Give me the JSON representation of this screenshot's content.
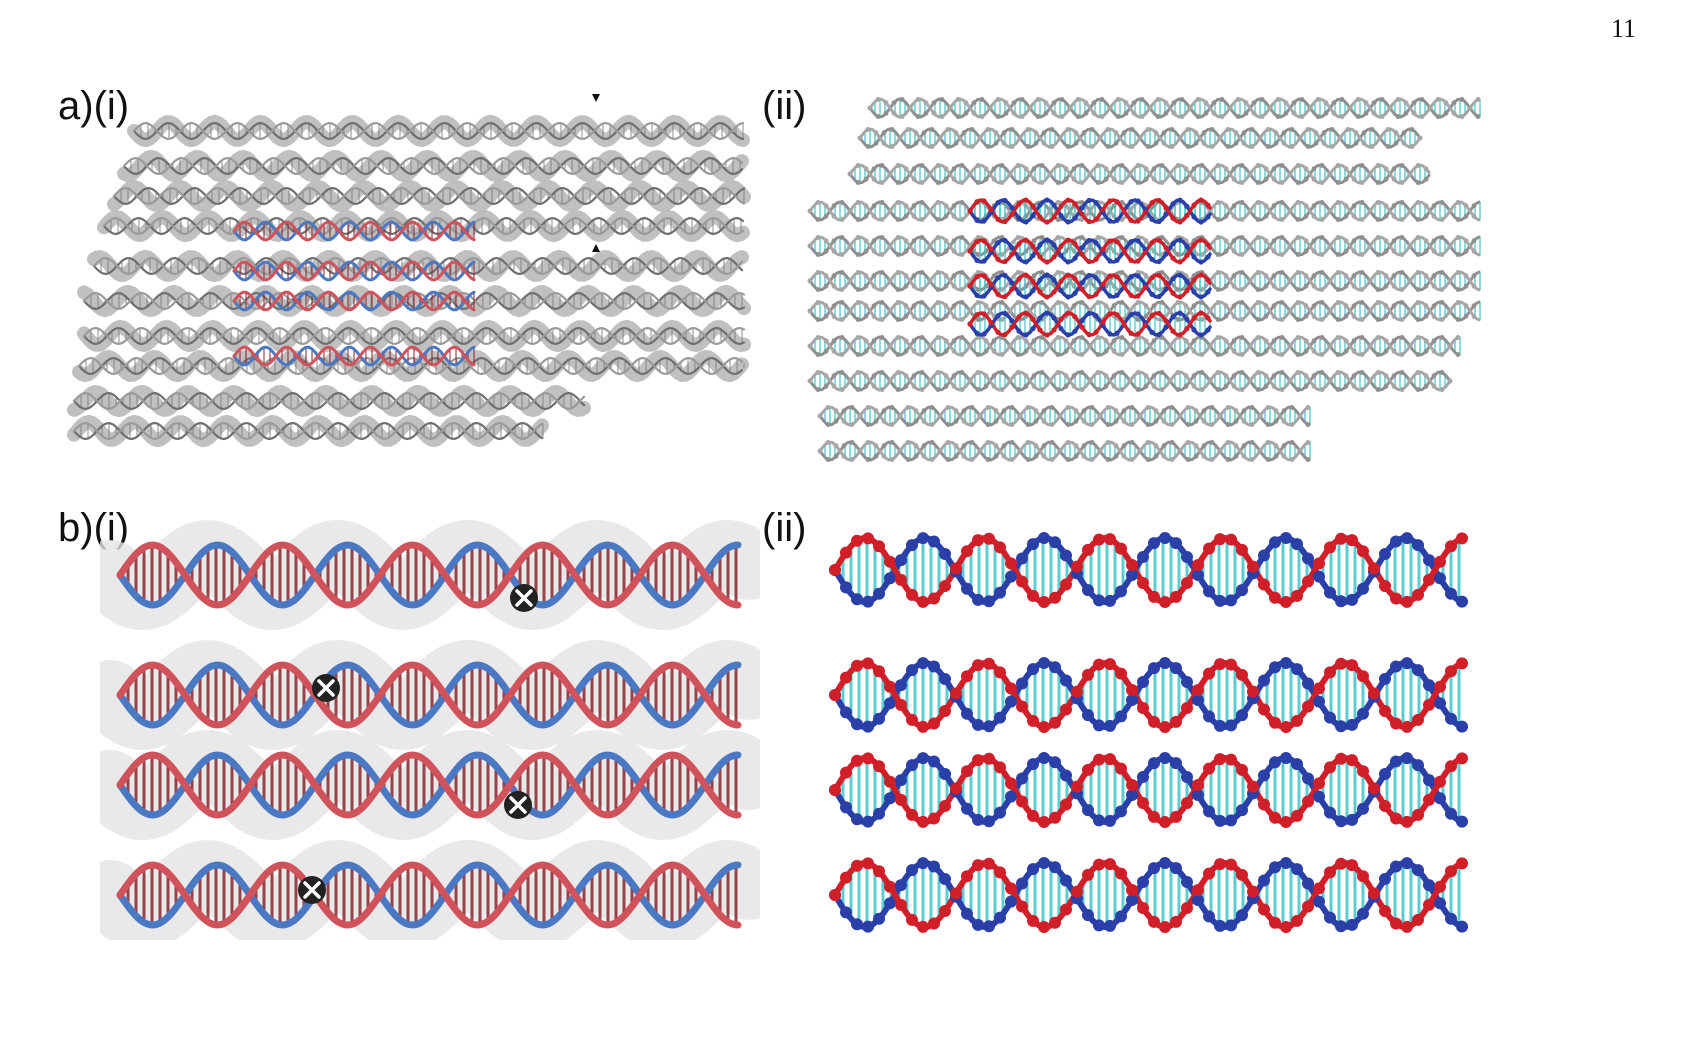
{
  "page": {
    "number": "11"
  },
  "panels": {
    "a_i": {
      "label": "a)(i)"
    },
    "a_ii": {
      "label": "(ii)"
    },
    "b_i": {
      "label": "b)(i)"
    },
    "b_ii": {
      "label": "(ii)"
    }
  },
  "colors": {
    "backbone_grey": "#8a8a8a",
    "density_grey": "#b9b9b9",
    "strand_blue": "#2b3fa8",
    "strand_red": "#d11f2a",
    "base_cyan": "#3cc6c9",
    "ribbon_blue": "#4a78c2",
    "ribbon_red": "#d0525a"
  },
  "icons": {
    "marker": "cross-mark-icon",
    "arrow": "arrowhead-icon"
  }
}
